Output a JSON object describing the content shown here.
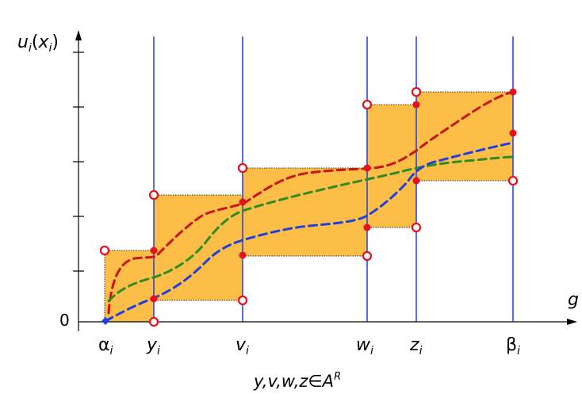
{
  "figure": {
    "y_axis_label": {
      "base": "u",
      "sub": "i",
      "paren_open": "(",
      "arg": "x",
      "arg_sub": "i",
      "paren_close": ")"
    },
    "x_axis_label": "g",
    "origin_label": "0",
    "tick_labels": [
      {
        "base": "α",
        "sub": "i"
      },
      {
        "base": "y",
        "sub": "i"
      },
      {
        "base": "v",
        "sub": "i"
      },
      {
        "base": "w",
        "sub": "i"
      },
      {
        "base": "z",
        "sub": "i"
      },
      {
        "base": "β",
        "sub": "i"
      }
    ],
    "caption": {
      "text": "y,v,w,z∈A",
      "sup": "R"
    },
    "colors": {
      "box_fill": "#FDBE47",
      "vertical_line": "#1F3FE0",
      "upper_curve": "#C8140C",
      "middle_curve": "#2E8B1E",
      "lower_curve": "#1F3FE0",
      "point": "#E8101A"
    }
  }
}
